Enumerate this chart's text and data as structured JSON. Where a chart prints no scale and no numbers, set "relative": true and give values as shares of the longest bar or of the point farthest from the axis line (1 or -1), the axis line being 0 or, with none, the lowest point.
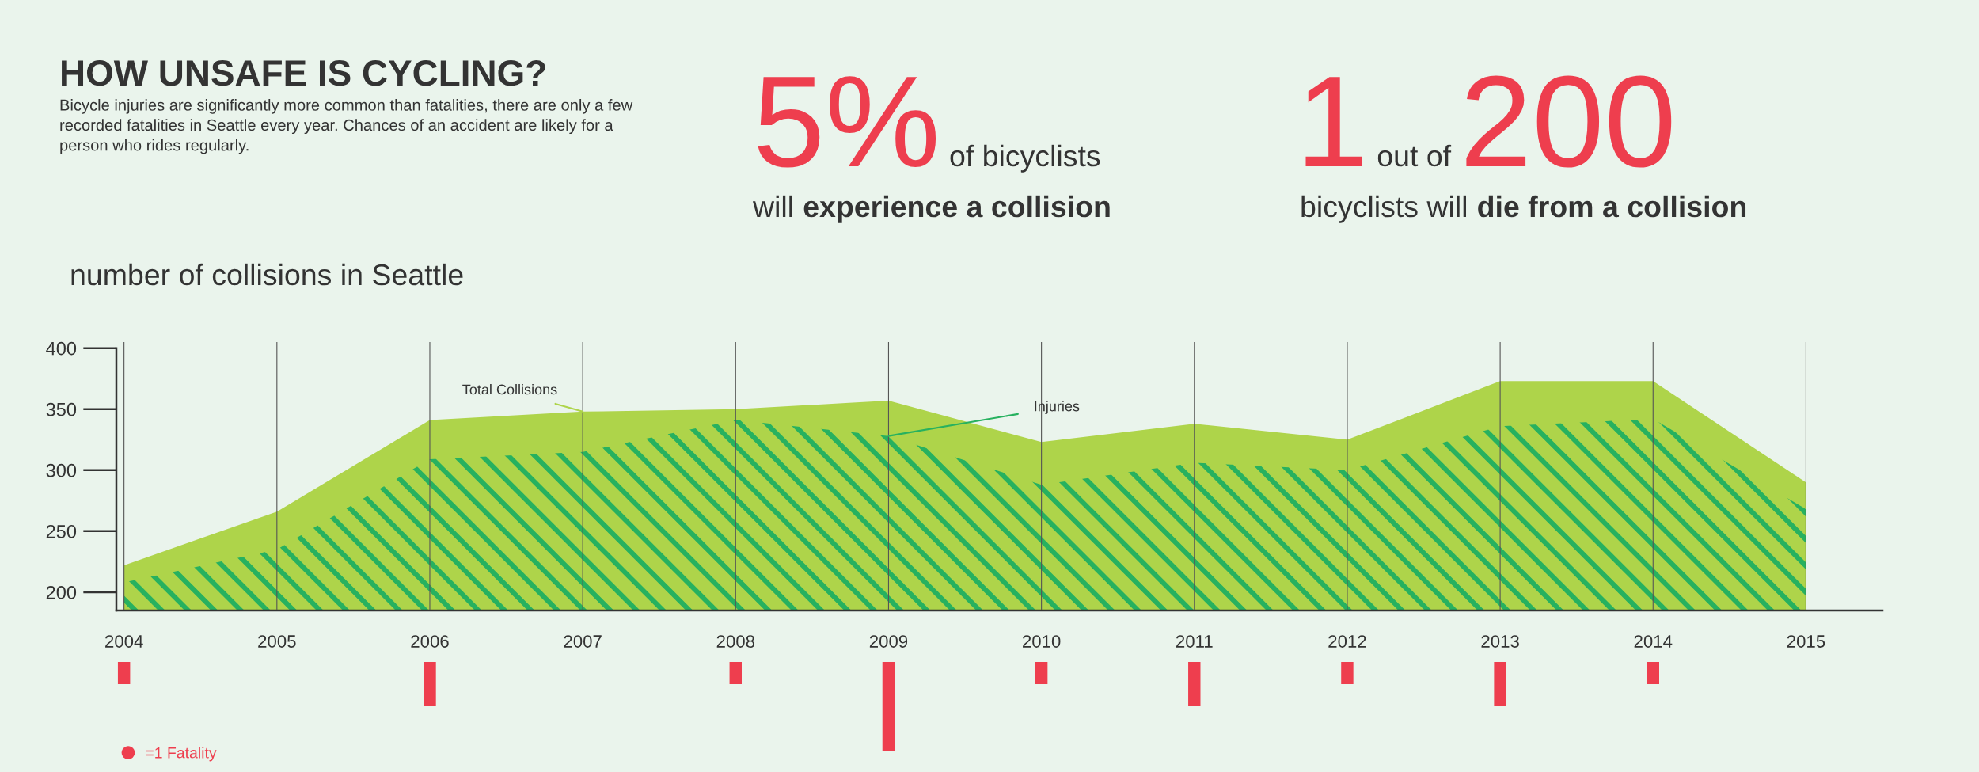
{
  "chart_data": [
    {
      "type": "other",
      "title": "HOW UNSAFE IS CYCLING?",
      "subtitle": "Bicycle injuries are significantly more common than fatalities, there are only a few recorded fatalities in Seattle every year. Chances of an accident are likely for a person who rides regularly.",
      "annotations": [
        "5%",
        "of bicyclists",
        "will",
        "experience a collision",
        "1",
        "out of",
        "200",
        "bicyclists will",
        "die from a collision"
      ]
    },
    {
      "type": "area",
      "title": "number of collisions in Seattle",
      "x": [
        2004,
        2005,
        2006,
        2007,
        2008,
        2009,
        2010,
        2011,
        2012,
        2013,
        2014,
        2015
      ],
      "series": [
        {
          "name": "Total Collisions",
          "color": "#aed44a",
          "values": [
            222,
            266,
            341,
            348,
            350,
            357,
            323,
            338,
            325,
            373,
            373,
            290
          ]
        },
        {
          "name": "Injuries",
          "color": "#27b15f",
          "values": [
            208,
            235,
            309,
            315,
            341,
            328,
            288,
            306,
            300,
            336,
            342,
            268
          ]
        }
      ],
      "xlim": [
        2003.95,
        2015.5
      ],
      "ylim": [
        185,
        405
      ],
      "xticks": [
        2004,
        2005,
        2006,
        2007,
        2008,
        2009,
        2010,
        2011,
        2012,
        2013,
        2014,
        2015
      ],
      "yticks": [
        200,
        250,
        300,
        350,
        400
      ],
      "grid": "x"
    },
    {
      "type": "bar",
      "relative": true,
      "x": [
        2004,
        2005,
        2006,
        2007,
        2008,
        2009,
        2010,
        2011,
        2012,
        2013,
        2014,
        2015
      ],
      "series": [
        {
          "name": "=1 Fatality",
          "color": "#ee3e4e",
          "values": [
            -0.25,
            0,
            -0.5,
            0,
            -0.25,
            -1,
            -0.25,
            -0.5,
            -0.25,
            -0.5,
            -0.25,
            0
          ]
        }
      ],
      "legend": "bottom left",
      "tick_labels": false
    }
  ]
}
